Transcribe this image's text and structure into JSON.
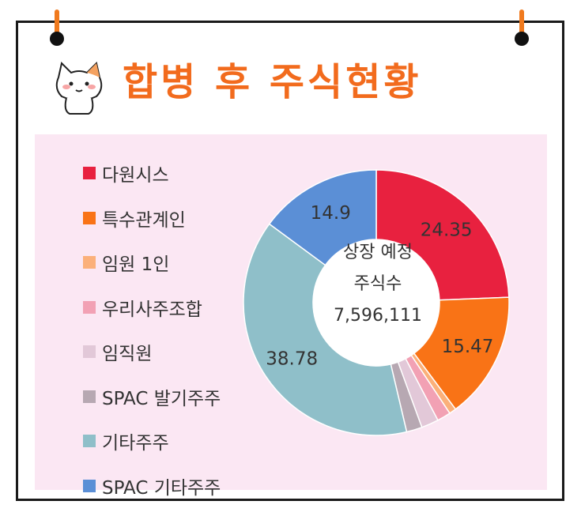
{
  "title": "합병 후 주식현황",
  "colors": {
    "accent": "#f26b1d",
    "panel": "#fbe7f3"
  },
  "chart_data": {
    "type": "pie",
    "center_text": [
      "상장 예정",
      "주식수",
      "7,596,111"
    ],
    "legend_position": "left",
    "slices": [
      {
        "name": "다원시스",
        "value": 24.35,
        "color": "#e8213f",
        "label": "24.35"
      },
      {
        "name": "특수관계인",
        "value": 15.47,
        "color": "#f97316",
        "label": "15.47"
      },
      {
        "name": "임원 1인",
        "value": 0.85,
        "color": "#fbb07a",
        "label": ""
      },
      {
        "name": "우리사주조합",
        "value": 1.65,
        "color": "#f2a1b4",
        "label": ""
      },
      {
        "name": "임직원",
        "value": 2.1,
        "color": "#e2c8d8",
        "label": ""
      },
      {
        "name": "SPAC 발기주주",
        "value": 1.9,
        "color": "#b7a8b2",
        "label": ""
      },
      {
        "name": "기타주주",
        "value": 38.78,
        "color": "#8fbfc9",
        "label": "38.78"
      },
      {
        "name": "SPAC 기타주주",
        "value": 14.9,
        "color": "#5b8fd6",
        "label": "14.9"
      }
    ]
  }
}
